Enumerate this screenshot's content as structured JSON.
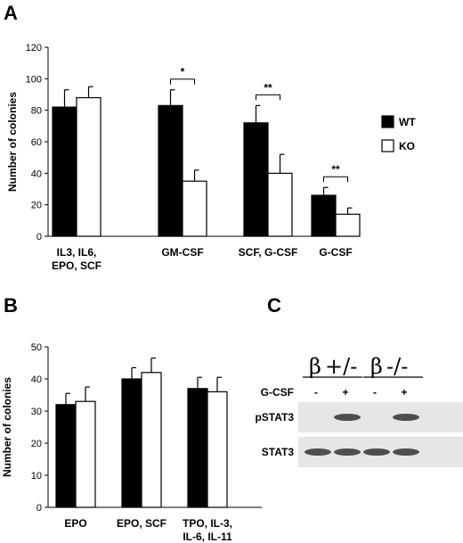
{
  "panels": {
    "a": "A",
    "b": "B",
    "c": "C"
  },
  "chart_data": [
    {
      "panel": "A",
      "type": "bar",
      "ylabel": "Number of colonies",
      "ylim": [
        0,
        120
      ],
      "yticks": [
        0,
        20,
        40,
        60,
        80,
        100,
        120
      ],
      "categories": [
        [
          "IL3, IL6,",
          "EPO, SCF"
        ],
        [
          "GM-CSF"
        ],
        [
          "SCF, G-CSF"
        ],
        [
          "G-CSF"
        ]
      ],
      "series": [
        {
          "name": "WT",
          "color": "#000000",
          "values": [
            82,
            83,
            72,
            26
          ],
          "errors": [
            11,
            10,
            11,
            5
          ]
        },
        {
          "name": "KO",
          "color": "#ffffff",
          "values": [
            88,
            35,
            40,
            14
          ],
          "errors": [
            7,
            7,
            12,
            4
          ]
        }
      ],
      "significance": [
        "",
        "*",
        "**",
        "**"
      ],
      "legend": "right"
    },
    {
      "panel": "B",
      "type": "bar",
      "ylabel": "Number of colonies",
      "ylim": [
        0,
        50
      ],
      "yticks": [
        0,
        10,
        20,
        30,
        40,
        50
      ],
      "categories": [
        [
          "EPO"
        ],
        [
          "EPO, SCF"
        ],
        [
          "TPO, IL-3,",
          "IL-6, IL-11"
        ]
      ],
      "series": [
        {
          "color": "#000000",
          "values": [
            32,
            40,
            37
          ],
          "errors": [
            3.5,
            3.5,
            3.5
          ]
        },
        {
          "color": "#ffffff",
          "values": [
            33,
            42,
            36
          ],
          "errors": [
            4.5,
            4.5,
            4.5
          ]
        }
      ]
    }
  ],
  "blot": {
    "groups": [
      "+/-",
      "-/-"
    ],
    "beta": "β",
    "treatment_label": "G-CSF",
    "treatment_marks": [
      "-",
      "+",
      "-",
      "+"
    ],
    "rows": [
      {
        "label": "pSTAT3",
        "bands": [
          0,
          1,
          0,
          1
        ]
      },
      {
        "label": "STAT3",
        "bands": [
          1,
          1,
          1,
          1
        ]
      }
    ]
  }
}
